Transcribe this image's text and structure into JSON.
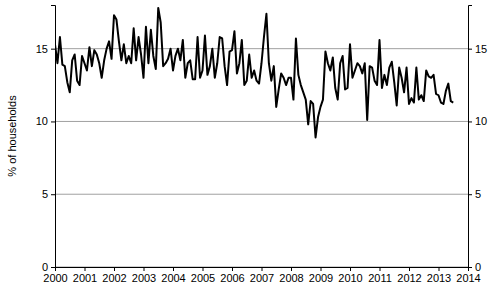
{
  "chart_data": {
    "type": "line",
    "y_label": "% of households",
    "color": "#000000",
    "grid": true,
    "xlim": [
      2000,
      2014
    ],
    "xticks": [
      2000,
      2001,
      2002,
      2003,
      2004,
      2005,
      2006,
      2007,
      2008,
      2009,
      2010,
      2011,
      2012,
      2013,
      2014
    ],
    "ylim": [
      0,
      18
    ],
    "yticks": [
      0,
      5,
      10,
      15
    ],
    "x": [
      2000,
      2000.083,
      2000.167,
      2000.25,
      2000.333,
      2000.417,
      2000.5,
      2000.583,
      2000.667,
      2000.75,
      2000.833,
      2000.917,
      2001,
      2001.083,
      2001.167,
      2001.25,
      2001.333,
      2001.417,
      2001.5,
      2001.583,
      2001.667,
      2001.75,
      2001.833,
      2001.917,
      2002,
      2002.083,
      2002.167,
      2002.25,
      2002.333,
      2002.417,
      2002.5,
      2002.583,
      2002.667,
      2002.75,
      2002.833,
      2002.917,
      2003,
      2003.083,
      2003.167,
      2003.25,
      2003.333,
      2003.417,
      2003.5,
      2003.583,
      2003.667,
      2003.75,
      2003.833,
      2003.917,
      2004,
      2004.083,
      2004.167,
      2004.25,
      2004.333,
      2004.417,
      2004.5,
      2004.583,
      2004.667,
      2004.75,
      2004.833,
      2004.917,
      2005,
      2005.083,
      2005.167,
      2005.25,
      2005.333,
      2005.417,
      2005.5,
      2005.583,
      2005.667,
      2005.75,
      2005.833,
      2005.917,
      2006,
      2006.083,
      2006.167,
      2006.25,
      2006.333,
      2006.417,
      2006.5,
      2006.583,
      2006.667,
      2006.75,
      2006.833,
      2006.917,
      2007,
      2007.083,
      2007.167,
      2007.25,
      2007.333,
      2007.417,
      2007.5,
      2007.583,
      2007.667,
      2007.75,
      2007.833,
      2007.917,
      2008,
      2008.083,
      2008.167,
      2008.25,
      2008.333,
      2008.417,
      2008.5,
      2008.583,
      2008.667,
      2008.75,
      2008.833,
      2008.917,
      2009,
      2009.083,
      2009.167,
      2009.25,
      2009.333,
      2009.417,
      2009.5,
      2009.583,
      2009.667,
      2009.75,
      2009.833,
      2009.917,
      2010,
      2010.083,
      2010.167,
      2010.25,
      2010.333,
      2010.417,
      2010.5,
      2010.583,
      2010.667,
      2010.75,
      2010.833,
      2010.917,
      2011,
      2011.083,
      2011.167,
      2011.25,
      2011.333,
      2011.417,
      2011.5,
      2011.583,
      2011.667,
      2011.75,
      2011.833,
      2011.917,
      2012,
      2012.083,
      2012.167,
      2012.25,
      2012.333,
      2012.417,
      2012.5,
      2012.583,
      2012.667,
      2012.75,
      2012.833,
      2012.917,
      2013,
      2013.083,
      2013.167,
      2013.25,
      2013.333,
      2013.417,
      2013.5
    ],
    "values": [
      15.3,
      14.0,
      15.8,
      13.9,
      13.8,
      12.7,
      12.0,
      14.2,
      14.6,
      12.8,
      12.5,
      14.5,
      14.0,
      13.5,
      15.1,
      13.8,
      14.9,
      14.6,
      14.0,
      13.0,
      14.2,
      15.0,
      15.5,
      14.3,
      17.3,
      17.0,
      15.5,
      14.2,
      15.3,
      14.0,
      14.5,
      14.0,
      16.4,
      14.2,
      15.8,
      14.6,
      13.0,
      16.5,
      14.0,
      16.3,
      14.5,
      13.6,
      17.8,
      16.8,
      13.8,
      14.0,
      14.3,
      15.0,
      13.5,
      14.5,
      15.0,
      14.2,
      15.6,
      13.0,
      14.0,
      14.2,
      12.9,
      12.9,
      15.8,
      13.0,
      13.5,
      15.9,
      13.2,
      13.8,
      15.0,
      13.0,
      14.0,
      15.8,
      15.7,
      13.8,
      12.5,
      14.8,
      14.9,
      16.2,
      13.3,
      14.0,
      15.6,
      12.5,
      12.8,
      14.6,
      13.0,
      13.5,
      12.8,
      12.6,
      14.0,
      15.8,
      17.4,
      14.0,
      12.8,
      13.8,
      11.0,
      12.2,
      13.3,
      13.0,
      12.5,
      13.0,
      13.0,
      11.5,
      15.7,
      13.2,
      12.5,
      12.0,
      11.5,
      9.8,
      11.4,
      11.2,
      8.9,
      10.3,
      11.0,
      11.5,
      14.8,
      14.0,
      13.5,
      14.4,
      12.3,
      11.5,
      14.0,
      14.5,
      12.2,
      12.3,
      15.3,
      13.0,
      13.5,
      14.0,
      13.8,
      13.3,
      14.0,
      10.1,
      13.8,
      13.7,
      12.8,
      12.5,
      15.6,
      12.3,
      13.2,
      12.5,
      13.7,
      14.1,
      12.7,
      11.1,
      13.7,
      13.0,
      12.0,
      13.7,
      11.2,
      11.6,
      11.3,
      13.7,
      11.5,
      11.8,
      11.4,
      13.5,
      13.1,
      13.0,
      13.2,
      11.9,
      11.8,
      11.3,
      11.2,
      12.1,
      12.6,
      11.4,
      11.3
    ]
  }
}
